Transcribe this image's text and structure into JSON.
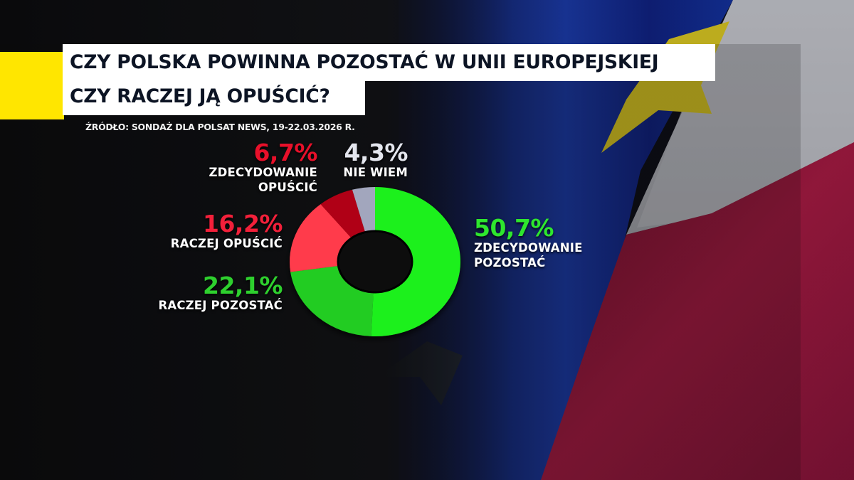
{
  "title": {
    "line1": "CZY POLSKA POWINNA POZOSTAĆ W UNII EUROPEJSKIEJ",
    "line2": "CZY RACZEJ JĄ OPUŚCIĆ?"
  },
  "source": "ŹRÓDŁO: SONDAŻ DLA POLSAT NEWS, 19-22.03.2026 R.",
  "labels": {
    "zdecydowanie_opuscic": {
      "pct": "6,7%",
      "line1": "ZDECYDOWANIE",
      "line2": "OPUŚCIĆ"
    },
    "nie_wiem": {
      "pct": "4,3%",
      "line1": "NIE WIEM"
    },
    "raczej_opuscic": {
      "pct": "16,2%",
      "line1": "RACZEJ OPUŚCIĆ"
    },
    "raczej_pozostac": {
      "pct": "22,1%",
      "line1": "RACZEJ POZOSTAĆ"
    },
    "zdecydowanie_pozostac": {
      "pct": "50,7%",
      "line1": "ZDECYDOWANIE",
      "line2": "POZOSTAĆ"
    }
  },
  "colors": {
    "zdecydowanie_pozostac": "#1ff01f",
    "raczej_pozostac": "#22cc22",
    "raczej_opuscic": "#ff3b4b",
    "zdecydowanie_opuscic": "#b00012",
    "nie_wiem": "#a2a6bd",
    "accent_yellow": "#ffe600",
    "label_red": "#e8102a",
    "label_green": "#2ee62e",
    "label_gray": "#e4e6ee"
  },
  "chart_data": {
    "type": "pie",
    "variant": "donut",
    "title": "CZY POLSKA POWINNA POZOSTAĆ W UNII EUROPEJSKIEJ CZY RACZEJ JĄ OPUŚCIĆ?",
    "subtitle": "ŹRÓDŁO: SONDAŻ DLA POLSAT NEWS, 19-22.03.2026 R.",
    "categories": [
      "ZDECYDOWANIE POZOSTAĆ",
      "RACZEJ POZOSTAĆ",
      "RACZEJ OPUŚCIĆ",
      "ZDECYDOWANIE OPUŚCIĆ",
      "NIE WIEM"
    ],
    "values": [
      50.7,
      22.1,
      16.2,
      6.7,
      4.3
    ],
    "unit": "%",
    "start_angle": "12 o'clock, clockwise",
    "legend": "direct labels around donut"
  }
}
